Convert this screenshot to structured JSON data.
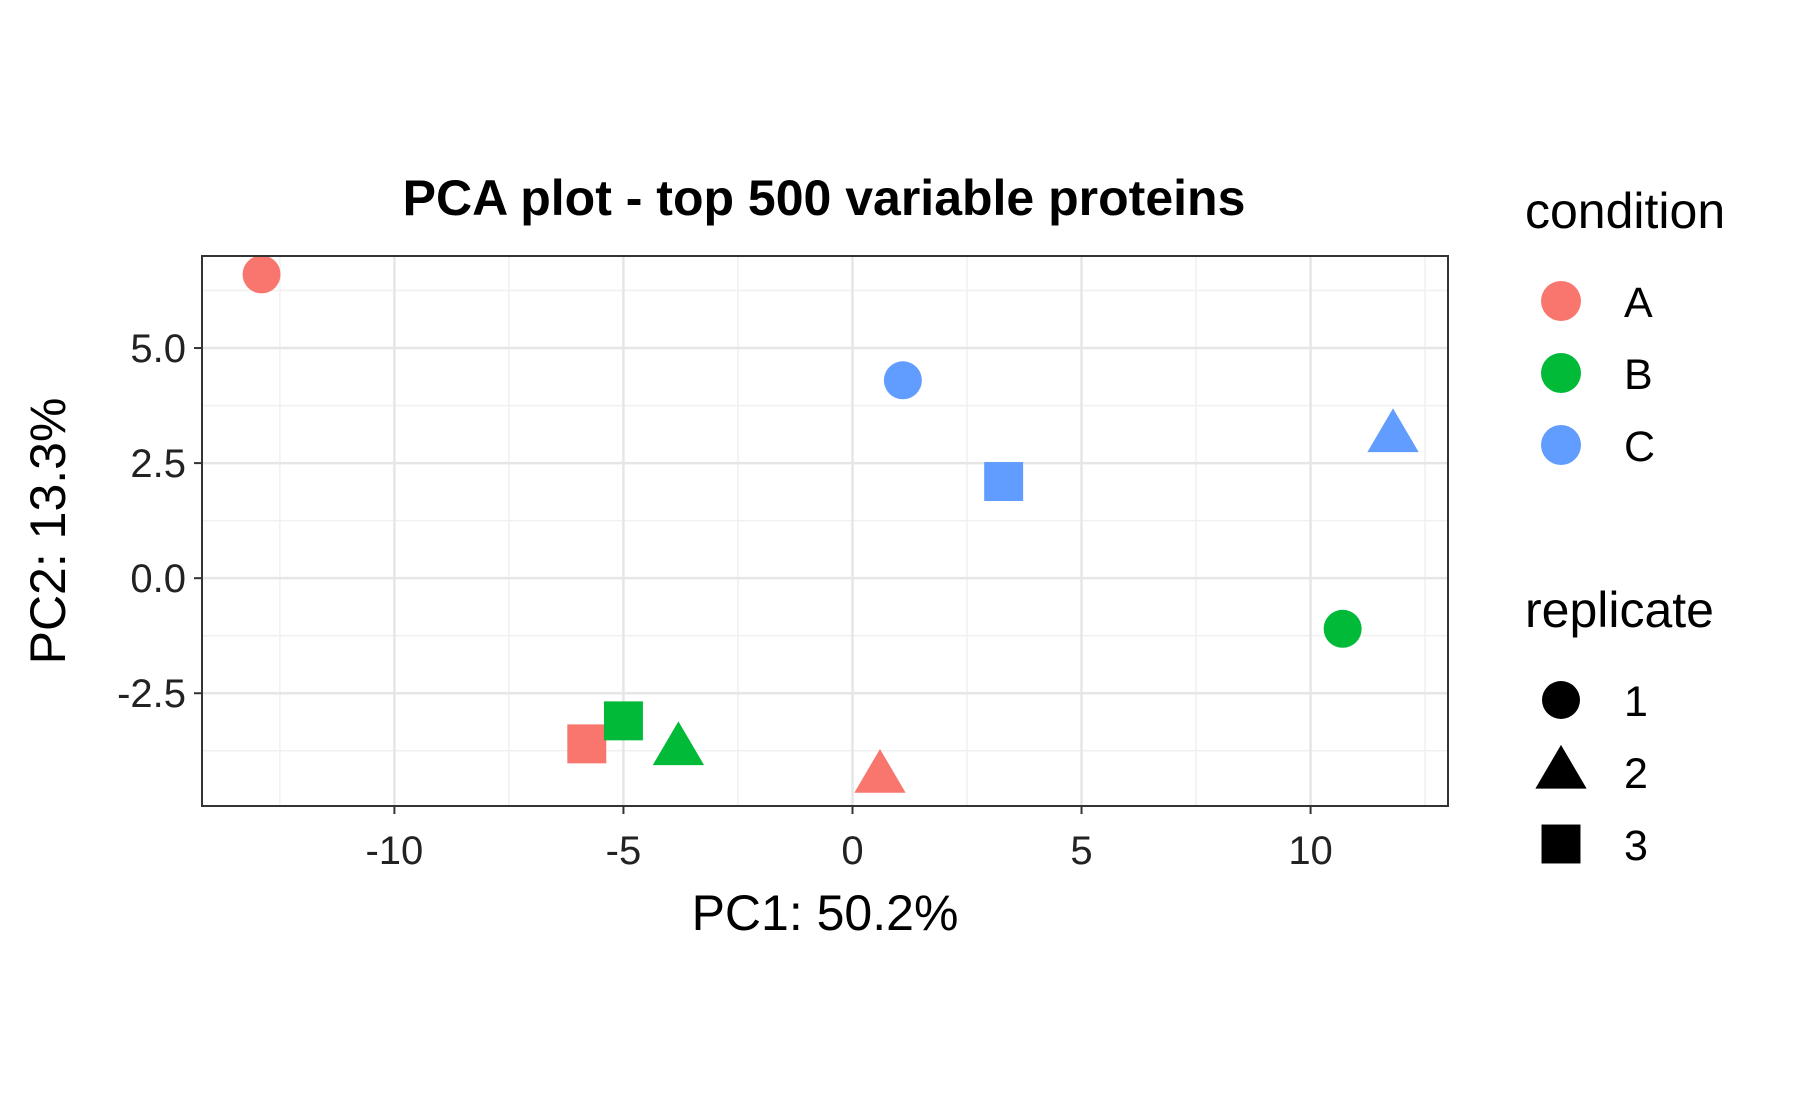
{
  "chart_data": {
    "type": "scatter",
    "title": "PCA plot - top 500 variable proteins",
    "xlabel": "PC1: 50.2%",
    "ylabel": "PC2: 13.3%",
    "xlim": [
      -14.2,
      13.0
    ],
    "ylim": [
      -4.95,
      7.0
    ],
    "x_ticks": [
      -10,
      -5,
      0,
      5,
      10
    ],
    "x_tick_labels": [
      "-10",
      "-5",
      "0",
      "5",
      "10"
    ],
    "y_ticks": [
      -2.5,
      0.0,
      2.5,
      5.0
    ],
    "y_tick_labels": [
      "-2.5",
      "0.0",
      "2.5",
      "5.0"
    ],
    "grid": true,
    "legend_position": "right",
    "legends": {
      "condition": {
        "title": "condition",
        "items": [
          {
            "label": "A",
            "color": "#F8766D"
          },
          {
            "label": "B",
            "color": "#00BA38"
          },
          {
            "label": "C",
            "color": "#619CFF"
          }
        ]
      },
      "replicate": {
        "title": "replicate",
        "items": [
          {
            "label": "1",
            "shape": "circle"
          },
          {
            "label": "2",
            "shape": "triangle"
          },
          {
            "label": "3",
            "shape": "square"
          }
        ]
      }
    },
    "points": [
      {
        "condition": "A",
        "replicate": "1",
        "x": -12.9,
        "y": 6.6
      },
      {
        "condition": "A",
        "replicate": "2",
        "x": 0.6,
        "y": -4.3
      },
      {
        "condition": "A",
        "replicate": "3",
        "x": -5.8,
        "y": -3.6
      },
      {
        "condition": "B",
        "replicate": "1",
        "x": 10.7,
        "y": -1.1
      },
      {
        "condition": "B",
        "replicate": "2",
        "x": -3.8,
        "y": -3.7
      },
      {
        "condition": "B",
        "replicate": "3",
        "x": -5.0,
        "y": -3.1
      },
      {
        "condition": "C",
        "replicate": "1",
        "x": 1.1,
        "y": 4.3
      },
      {
        "condition": "C",
        "replicate": "2",
        "x": 11.8,
        "y": 3.1
      },
      {
        "condition": "C",
        "replicate": "3",
        "x": 3.3,
        "y": 2.1
      }
    ]
  }
}
